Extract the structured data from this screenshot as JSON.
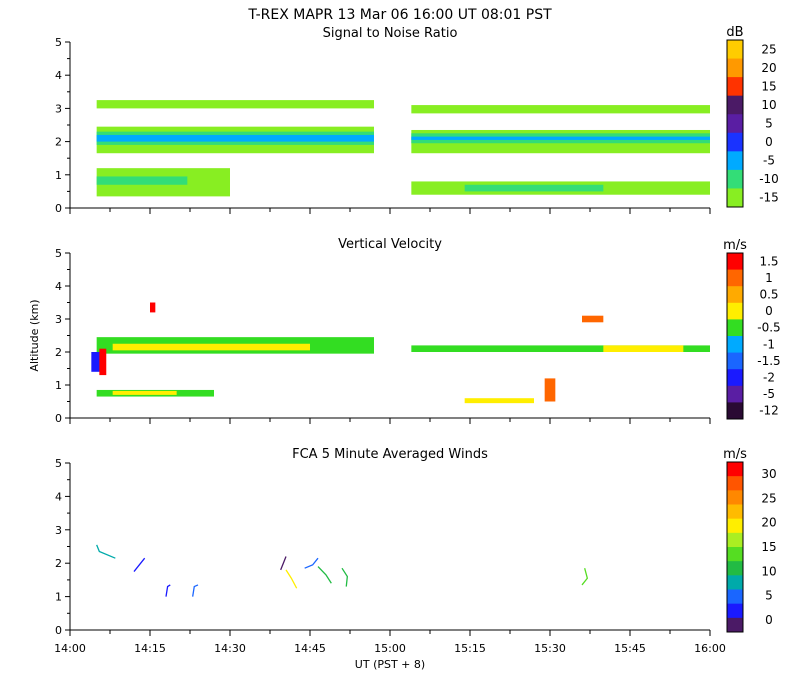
{
  "header": {
    "title": "T-REX   MAPR 13 Mar 06   16:00 UT   08:01   PST"
  },
  "chart_data": [
    {
      "type": "heatmap",
      "title": "Signal to Noise Ratio",
      "ylabel": "",
      "xlabel": "",
      "xlim": [
        0,
        120
      ],
      "ylim": [
        0,
        5
      ],
      "yticks": [
        "0",
        "1",
        "2",
        "3",
        "4",
        "5"
      ],
      "colorbar": {
        "unit": "dB",
        "labels": [
          "25",
          "20",
          "15",
          "10",
          "5",
          "0",
          "-5",
          "-10",
          "-15"
        ],
        "colors": [
          "#ffcc00",
          "#ff9900",
          "#ff3300",
          "#4b1a66",
          "#5a1ea3",
          "#1a33ff",
          "#00aaff",
          "#33dd77",
          "#88ee22"
        ]
      },
      "bands": [
        {
          "x0": 5,
          "x1": 57,
          "y0": 3.0,
          "y1": 3.25,
          "level": "-15"
        },
        {
          "x0": 64,
          "x1": 120,
          "y0": 2.85,
          "y1": 3.1,
          "level": "-15"
        },
        {
          "x0": 5,
          "x1": 57,
          "y0": 1.65,
          "y1": 2.45,
          "level": "-15"
        },
        {
          "x0": 5,
          "x1": 57,
          "y0": 1.9,
          "y1": 2.3,
          "level": "-10"
        },
        {
          "x0": 5,
          "x1": 57,
          "y0": 2.0,
          "y1": 2.2,
          "level": "-5"
        },
        {
          "x0": 64,
          "x1": 120,
          "y0": 1.65,
          "y1": 2.35,
          "level": "-15"
        },
        {
          "x0": 64,
          "x1": 120,
          "y0": 1.95,
          "y1": 2.25,
          "level": "-10"
        },
        {
          "x0": 64,
          "x1": 120,
          "y0": 2.05,
          "y1": 2.15,
          "level": "-5"
        },
        {
          "x0": 5,
          "x1": 30,
          "y0": 0.35,
          "y1": 1.2,
          "level": "-15"
        },
        {
          "x0": 5,
          "x1": 22,
          "y0": 0.7,
          "y1": 0.95,
          "level": "-10"
        },
        {
          "x0": 64,
          "x1": 120,
          "y0": 0.4,
          "y1": 0.8,
          "level": "-15"
        },
        {
          "x0": 74,
          "x1": 100,
          "y0": 0.5,
          "y1": 0.7,
          "level": "-10"
        }
      ]
    },
    {
      "type": "heatmap",
      "title": "Vertical Velocity",
      "ylabel": "Altitude (km)",
      "xlabel": "",
      "xlim": [
        0,
        120
      ],
      "ylim": [
        0,
        5
      ],
      "yticks": [
        "0",
        "1",
        "2",
        "3",
        "4",
        "5"
      ],
      "colorbar": {
        "unit": "m/s",
        "labels": [
          "1.5",
          "1",
          "0.5",
          "0",
          "-0.5",
          "-1",
          "-1.5",
          "-2",
          "-5",
          "-12"
        ],
        "colors": [
          "#ff0000",
          "#ff6600",
          "#ffaa00",
          "#ffee00",
          "#33dd22",
          "#00aaff",
          "#1a66ff",
          "#1a1aff",
          "#5a1ea3",
          "#2a0a33"
        ]
      },
      "bands": [
        {
          "x0": 5,
          "x1": 57,
          "y0": 1.95,
          "y1": 2.45,
          "level": "-0.5"
        },
        {
          "x0": 8,
          "x1": 45,
          "y0": 2.05,
          "y1": 2.25,
          "level": "0"
        },
        {
          "x0": 64,
          "x1": 120,
          "y0": 2.0,
          "y1": 2.2,
          "level": "-0.5"
        },
        {
          "x0": 100,
          "x1": 115,
          "y0": 2.0,
          "y1": 2.2,
          "level": "0"
        },
        {
          "x0": 5,
          "x1": 27,
          "y0": 0.65,
          "y1": 0.85,
          "level": "-0.5"
        },
        {
          "x0": 8,
          "x1": 20,
          "y0": 0.7,
          "y1": 0.82,
          "level": "0"
        },
        {
          "x0": 74,
          "x1": 87,
          "y0": 0.45,
          "y1": 0.6,
          "level": "0"
        },
        {
          "x0": 4,
          "x1": 6,
          "y0": 1.4,
          "y1": 2.0,
          "level": "-2"
        },
        {
          "x0": 5.5,
          "x1": 6.8,
          "y0": 1.3,
          "y1": 2.1,
          "level": "1.5"
        },
        {
          "x0": 15,
          "x1": 16,
          "y0": 3.2,
          "y1": 3.5,
          "level": "1.5"
        },
        {
          "x0": 89,
          "x1": 91,
          "y0": 0.5,
          "y1": 1.2,
          "level": "1"
        },
        {
          "x0": 96,
          "x1": 100,
          "y0": 2.9,
          "y1": 3.1,
          "level": "1"
        }
      ]
    },
    {
      "type": "line",
      "title": "FCA 5 Minute Averaged Winds",
      "xlabel": "UT  (PST + 8)",
      "ylabel": "",
      "xlim": [
        0,
        120
      ],
      "ylim": [
        0,
        5
      ],
      "yticks": [
        "0",
        "1",
        "2",
        "3",
        "4",
        "5"
      ],
      "xticks": [
        "14:00",
        "14:15",
        "14:30",
        "14:45",
        "15:00",
        "15:15",
        "15:30",
        "15:45",
        "16:00"
      ],
      "colorbar": {
        "unit": "m/s",
        "labels": [
          "30",
          "25",
          "20",
          "15",
          "10",
          "5",
          "0"
        ],
        "colors": [
          "#ff0000",
          "#ff5500",
          "#ff8800",
          "#ffbb00",
          "#ffee00",
          "#aaee22",
          "#55dd22",
          "#22bb44",
          "#00aaaa",
          "#1a66ff",
          "#1a1aff",
          "#4b1a66"
        ]
      },
      "barbs": [
        {
          "x": [
            5,
            5.5,
            8.5
          ],
          "y": [
            2.55,
            2.35,
            2.15
          ],
          "color": "#00aaaa"
        },
        {
          "x": [
            12,
            12.5,
            14
          ],
          "y": [
            1.75,
            1.85,
            2.15
          ],
          "color": "#1a1aff"
        },
        {
          "x": [
            18,
            18.3,
            18.8
          ],
          "y": [
            1.0,
            1.3,
            1.35
          ],
          "color": "#1a1aff"
        },
        {
          "x": [
            23,
            23.3,
            24
          ],
          "y": [
            1.0,
            1.3,
            1.35
          ],
          "color": "#1a66ff"
        },
        {
          "x": [
            39.5,
            40,
            40.5
          ],
          "y": [
            1.8,
            2.0,
            2.2
          ],
          "color": "#4b1a66"
        },
        {
          "x": [
            40.5,
            41.5,
            42.5
          ],
          "y": [
            1.8,
            1.55,
            1.25
          ],
          "color": "#ffee00"
        },
        {
          "x": [
            44,
            45.5,
            46.5
          ],
          "y": [
            1.85,
            1.95,
            2.15
          ],
          "color": "#1a66ff"
        },
        {
          "x": [
            46.5,
            48,
            49
          ],
          "y": [
            1.9,
            1.65,
            1.4
          ],
          "color": "#22bb44"
        },
        {
          "x": [
            51,
            52,
            51.8
          ],
          "y": [
            1.85,
            1.6,
            1.3
          ],
          "color": "#22bb44"
        },
        {
          "x": [
            96.5,
            97,
            96
          ],
          "y": [
            1.85,
            1.55,
            1.35
          ],
          "color": "#55dd22"
        }
      ]
    }
  ]
}
